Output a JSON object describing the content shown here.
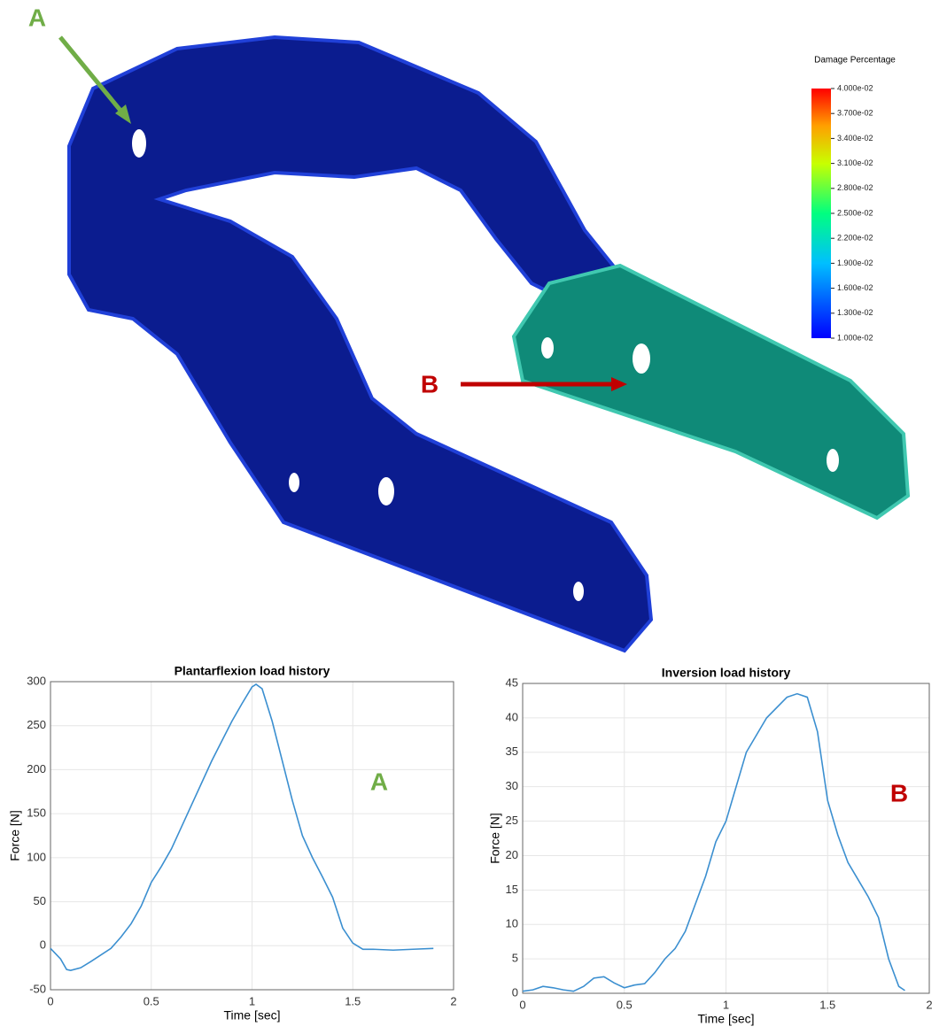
{
  "render": {
    "colorbar_title": "Damage Percentage",
    "colorbar_lim": [
      0.01,
      0.04
    ],
    "colorbar_ticks": [
      {
        "value": 0.04,
        "label": "4.000e-02"
      },
      {
        "value": 0.037,
        "label": "3.700e-02"
      },
      {
        "value": 0.034,
        "label": "3.400e-02"
      },
      {
        "value": 0.031,
        "label": "3.100e-02"
      },
      {
        "value": 0.028,
        "label": "2.800e-02"
      },
      {
        "value": 0.025,
        "label": "2.500e-02"
      },
      {
        "value": 0.022,
        "label": "2.200e-02"
      },
      {
        "value": 0.019,
        "label": "1.900e-02"
      },
      {
        "value": 0.016,
        "label": "1.600e-02"
      },
      {
        "value": 0.013,
        "label": "1.300e-02"
      },
      {
        "value": 0.01,
        "label": "1.000e-02"
      }
    ],
    "annotations": [
      {
        "text": "A",
        "color": "#70ad47"
      },
      {
        "text": "B",
        "color": "#c00000"
      }
    ]
  },
  "chart_data": [
    {
      "type": "line",
      "title": "Plantarflexion load history",
      "x_label": "Time [sec]",
      "y_label": "Force [N]",
      "annotation": "A",
      "annotation_color": "#70ad47",
      "color": "#3b8fd0",
      "grid": true,
      "xlim": [
        0,
        2
      ],
      "xticks": [
        0,
        0.5,
        1,
        1.5,
        2
      ],
      "ylim": [
        -50,
        300
      ],
      "yticks": [
        -50,
        0,
        50,
        100,
        150,
        200,
        250,
        300
      ],
      "x": [
        0,
        0.05,
        0.08,
        0.1,
        0.15,
        0.2,
        0.3,
        0.35,
        0.4,
        0.45,
        0.5,
        0.55,
        0.6,
        0.7,
        0.8,
        0.9,
        0.95,
        1.0,
        1.02,
        1.05,
        1.1,
        1.15,
        1.2,
        1.25,
        1.3,
        1.35,
        1.4,
        1.45,
        1.5,
        1.55,
        1.6,
        1.7,
        1.8,
        1.9
      ],
      "values": [
        -3,
        -15,
        -27,
        -28,
        -25,
        -18,
        -3,
        10,
        25,
        45,
        72,
        90,
        110,
        160,
        210,
        255,
        275,
        294,
        297,
        292,
        255,
        210,
        165,
        125,
        100,
        78,
        55,
        20,
        3,
        -4,
        -4,
        -5,
        -4,
        -3
      ]
    },
    {
      "type": "line",
      "title": "Inversion load history",
      "x_label": "Time [sec]",
      "y_label": "Force [N]",
      "annotation": "B",
      "annotation_color": "#c00000",
      "color": "#3b8fd0",
      "grid": true,
      "xlim": [
        0,
        2
      ],
      "xticks": [
        0,
        0.5,
        1,
        1.5,
        2
      ],
      "ylim": [
        0,
        45
      ],
      "yticks": [
        0,
        5,
        10,
        15,
        20,
        25,
        30,
        35,
        40,
        45
      ],
      "x": [
        0,
        0.05,
        0.1,
        0.15,
        0.2,
        0.25,
        0.3,
        0.35,
        0.4,
        0.45,
        0.5,
        0.55,
        0.6,
        0.65,
        0.7,
        0.75,
        0.8,
        0.85,
        0.9,
        0.95,
        1.0,
        1.05,
        1.1,
        1.2,
        1.3,
        1.35,
        1.4,
        1.45,
        1.5,
        1.55,
        1.6,
        1.65,
        1.7,
        1.75,
        1.8,
        1.85,
        1.88
      ],
      "values": [
        0.3,
        0.5,
        1,
        0.8,
        0.5,
        0.3,
        1,
        2.2,
        2.4,
        1.5,
        0.8,
        1.2,
        1.4,
        3,
        5,
        6.5,
        9,
        13,
        17,
        22,
        25,
        30,
        35,
        40,
        43,
        43.5,
        43,
        38,
        28,
        23,
        19,
        16.5,
        14,
        11,
        5,
        1,
        0.4
      ]
    }
  ]
}
